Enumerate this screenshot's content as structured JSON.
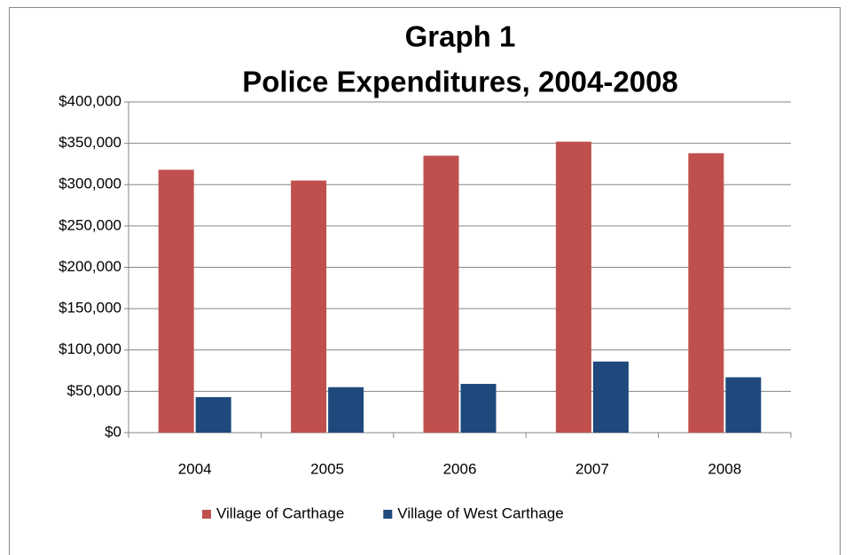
{
  "chart_data": {
    "type": "bar",
    "title": "Graph 1",
    "subtitle": "Police Expenditures, 2004-2008",
    "categories": [
      "2004",
      "2005",
      "2006",
      "2007",
      "2008"
    ],
    "series": [
      {
        "name": "Village of Carthage",
        "color": "#c0504d",
        "values": [
          318000,
          305000,
          335000,
          352000,
          338000
        ]
      },
      {
        "name": "Village of West Carthage",
        "color": "#1f497d",
        "values": [
          43000,
          55000,
          59000,
          86000,
          67000
        ]
      }
    ],
    "ylim": [
      0,
      400000
    ],
    "yticks": [
      {
        "value": 0,
        "label": "$0"
      },
      {
        "value": 50000,
        "label": "$50,000"
      },
      {
        "value": 100000,
        "label": "$100,000"
      },
      {
        "value": 150000,
        "label": "$150,000"
      },
      {
        "value": 200000,
        "label": "$200,000"
      },
      {
        "value": 250000,
        "label": "$250,000"
      },
      {
        "value": 300000,
        "label": "$300,000"
      },
      {
        "value": 350000,
        "label": "$350,000"
      },
      {
        "value": 400000,
        "label": "$400,000"
      }
    ],
    "grid": true,
    "legend": "bottom"
  }
}
